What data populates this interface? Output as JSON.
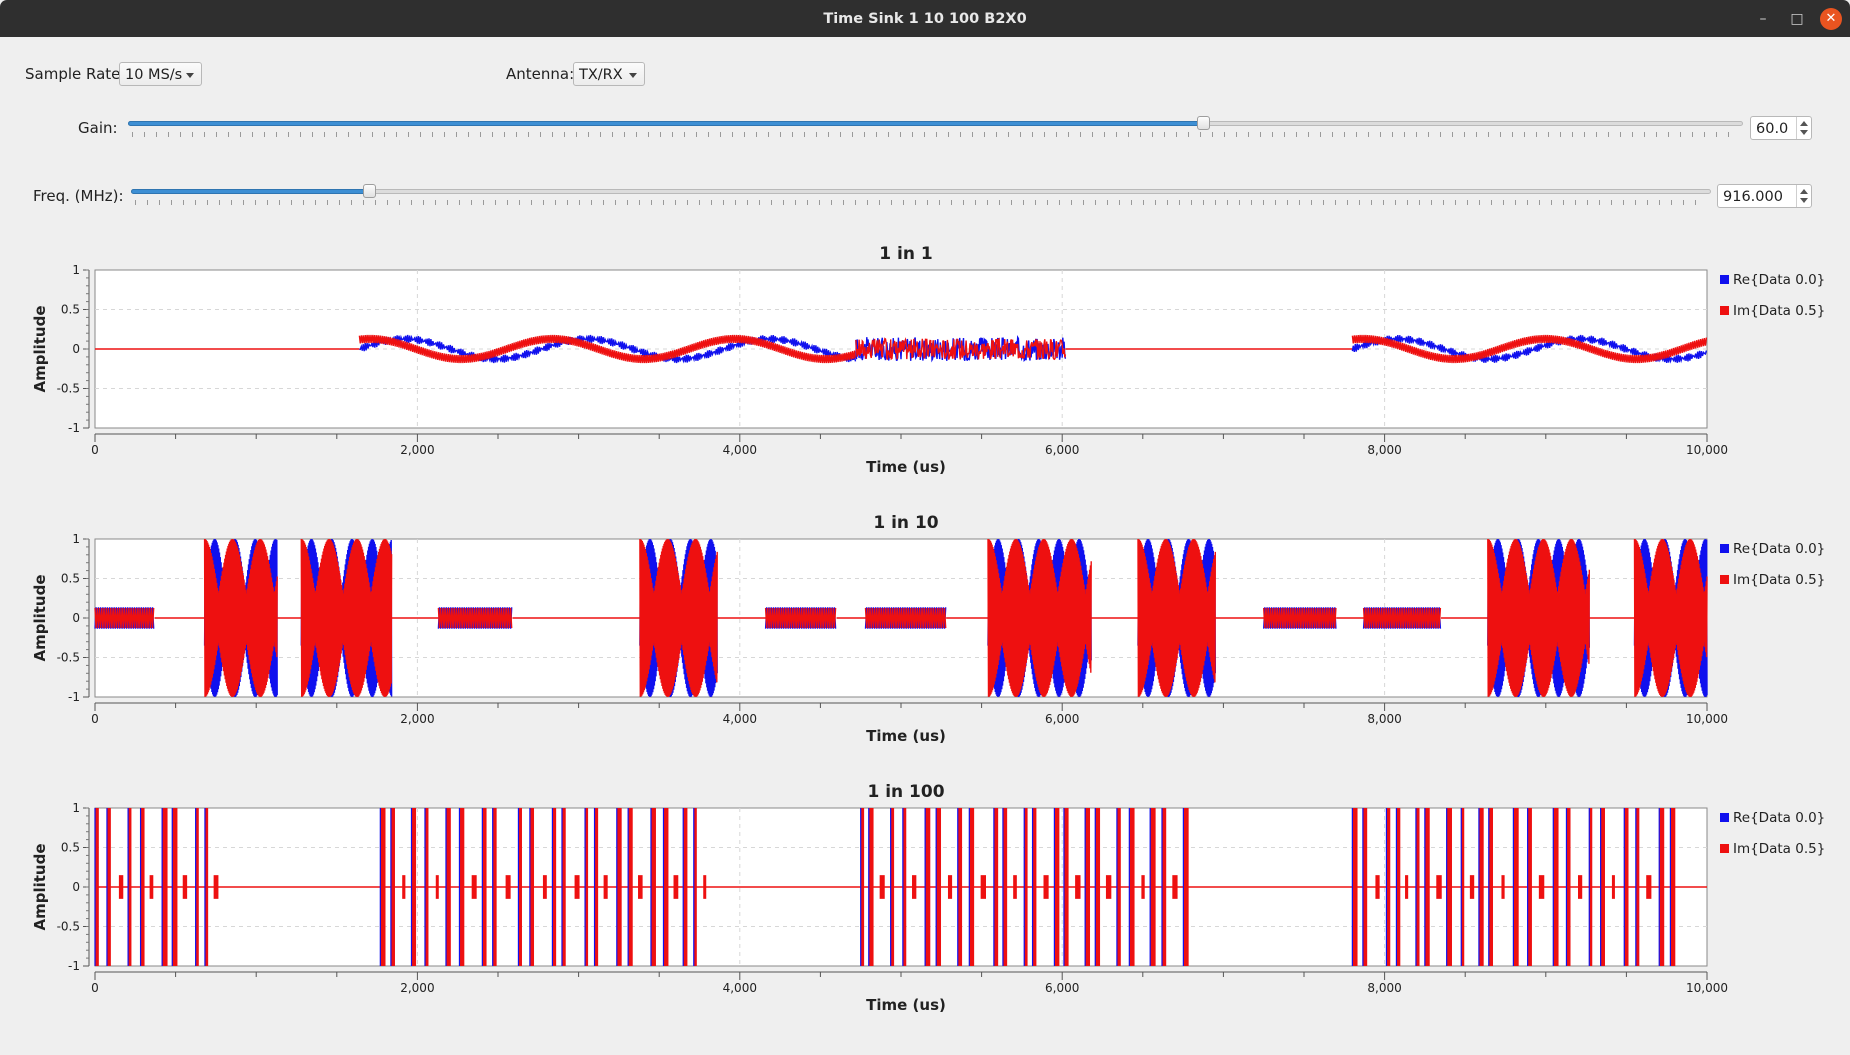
{
  "window": {
    "title": "Time Sink 1 10 100 B2X0"
  },
  "controls": {
    "sample_rate_label": "Sample Rate:",
    "sample_rate_value": "10 MS/s",
    "antenna_label": "Antenna:",
    "antenna_value": "TX/RX",
    "gain_label": "Gain:",
    "gain_value": "60.0",
    "gain_fraction": 0.667,
    "freq_label": "Freq. (MHz):",
    "freq_value": "916.000",
    "freq_fraction": 0.148
  },
  "colors": {
    "re": "#1010ee",
    "im": "#ee1010",
    "slider_fill": "#3d8fd4"
  },
  "chart_data": [
    {
      "type": "line",
      "title": "1 in 1",
      "xlabel": "Time (us)",
      "ylabel": "Amplitude",
      "xlim": [
        0,
        10000
      ],
      "ylim": [
        -1,
        1
      ],
      "xticks": [
        "0",
        "2,000",
        "4,000",
        "6,000",
        "8,000",
        "10,000"
      ],
      "yticks": [
        "1",
        "0.5",
        "0",
        "-0.5",
        "-1"
      ],
      "grid": true,
      "legend_position": "right",
      "series": [
        {
          "name": "Re{Data 0.0}"
        },
        {
          "name": "Im{Data 0.5}"
        }
      ],
      "bursts": [
        {
          "start": 1640,
          "end": 4720,
          "amp": 0.15,
          "kind": "wave"
        },
        {
          "start": 4720,
          "end": 6020,
          "amp": 0.15,
          "kind": "noisy"
        },
        {
          "start": 7800,
          "end": 10000,
          "amp": 0.15,
          "kind": "wave"
        }
      ]
    },
    {
      "type": "line",
      "title": "1 in 10",
      "xlabel": "Time (us)",
      "ylabel": "Amplitude",
      "xlim": [
        0,
        10000
      ],
      "ylim": [
        -1,
        1
      ],
      "xticks": [
        "0",
        "2,000",
        "4,000",
        "6,000",
        "8,000",
        "10,000"
      ],
      "yticks": [
        "1",
        "0.5",
        "0",
        "-0.5",
        "-1"
      ],
      "grid": true,
      "legend_position": "right",
      "series": [
        {
          "name": "Re{Data 0.0}"
        },
        {
          "name": "Im{Data 0.5}"
        }
      ],
      "bursts": [
        {
          "start": 0,
          "end": 370,
          "amp": 0.15,
          "kind": "small"
        },
        {
          "start": 680,
          "end": 1130,
          "amp": 1.0,
          "kind": "big"
        },
        {
          "start": 1280,
          "end": 1840,
          "amp": 1.0,
          "kind": "big"
        },
        {
          "start": 2130,
          "end": 2590,
          "amp": 0.15,
          "kind": "small"
        },
        {
          "start": 3380,
          "end": 3860,
          "amp": 1.0,
          "kind": "big"
        },
        {
          "start": 4160,
          "end": 4600,
          "amp": 0.15,
          "kind": "small"
        },
        {
          "start": 4780,
          "end": 5280,
          "amp": 0.15,
          "kind": "small"
        },
        {
          "start": 5540,
          "end": 6180,
          "amp": 1.0,
          "kind": "big"
        },
        {
          "start": 6470,
          "end": 6950,
          "amp": 1.0,
          "kind": "big"
        },
        {
          "start": 7250,
          "end": 7700,
          "amp": 0.15,
          "kind": "small"
        },
        {
          "start": 7870,
          "end": 8350,
          "amp": 0.15,
          "kind": "small"
        },
        {
          "start": 8640,
          "end": 9270,
          "amp": 1.0,
          "kind": "big"
        },
        {
          "start": 9550,
          "end": 10000,
          "amp": 1.0,
          "kind": "big"
        }
      ]
    },
    {
      "type": "line",
      "title": "1 in 100",
      "xlabel": "Time (us)",
      "ylabel": "Amplitude",
      "xlim": [
        0,
        10000
      ],
      "ylim": [
        -1,
        1
      ],
      "xticks": [
        "0",
        "2,000",
        "4,000",
        "6,000",
        "8,000",
        "10,000"
      ],
      "yticks": [
        "1",
        "0.5",
        "0",
        "-0.5",
        "-1"
      ],
      "grid": true,
      "legend_position": "right",
      "series": [
        {
          "name": "Re{Data 0.0}"
        },
        {
          "name": "Im{Data 0.5}"
        }
      ],
      "burst_groups": [
        {
          "start": 0,
          "end": 790
        },
        {
          "start": 1770,
          "end": 3800
        },
        {
          "start": 4750,
          "end": 6780
        },
        {
          "start": 7800,
          "end": 9850
        }
      ]
    }
  ]
}
